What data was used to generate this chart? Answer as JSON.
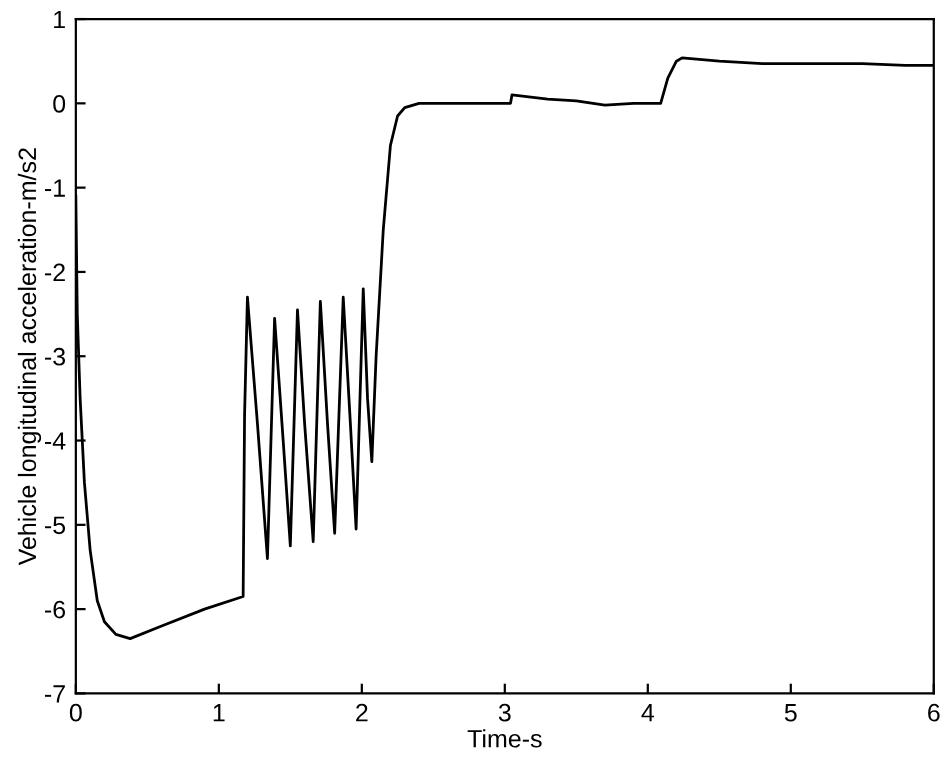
{
  "chart_data": {
    "type": "line",
    "xlabel": "Time-s",
    "ylabel": "Vehicle longitudinal acceleration-m/s2",
    "xlim": [
      0,
      6
    ],
    "ylim": [
      -7,
      1
    ],
    "xticks": [
      0,
      1,
      2,
      3,
      4,
      5,
      6
    ],
    "yticks": [
      -7,
      -6,
      -5,
      -4,
      -3,
      -2,
      -1,
      0,
      1
    ],
    "grid": false,
    "legend": false,
    "line_style": "solid",
    "marker": "none",
    "series": [
      {
        "color": "#000000",
        "x": [
          0.0,
          0.01,
          0.03,
          0.06,
          0.1,
          0.15,
          0.2,
          0.28,
          0.38,
          0.6,
          0.9,
          1.17,
          1.18,
          1.2,
          1.27,
          1.34,
          1.39,
          1.45,
          1.5,
          1.55,
          1.6,
          1.66,
          1.71,
          1.76,
          1.81,
          1.87,
          1.92,
          1.96,
          2.01,
          2.04,
          2.07,
          2.1,
          2.15,
          2.2,
          2.25,
          2.3,
          2.4,
          2.6,
          3.0,
          3.04,
          3.05,
          3.3,
          3.5,
          3.7,
          3.9,
          4.09,
          4.14,
          4.2,
          4.24,
          4.5,
          4.8,
          5.5,
          5.8,
          6.0
        ],
        "values": [
          -1.1,
          -2.5,
          -3.5,
          -4.5,
          -5.3,
          -5.9,
          -6.15,
          -6.3,
          -6.35,
          -6.2,
          -6.0,
          -5.85,
          -3.7,
          -2.3,
          -3.8,
          -5.4,
          -2.55,
          -4.0,
          -5.25,
          -2.45,
          -3.8,
          -5.2,
          -2.35,
          -3.8,
          -5.1,
          -2.3,
          -3.8,
          -5.05,
          -2.2,
          -3.5,
          -4.25,
          -3.0,
          -1.5,
          -0.5,
          -0.15,
          -0.05,
          0.0,
          0.0,
          0.0,
          0.0,
          0.1,
          0.05,
          0.03,
          -0.02,
          0.0,
          0.0,
          0.3,
          0.5,
          0.54,
          0.5,
          0.47,
          0.47,
          0.45,
          0.45
        ]
      }
    ]
  }
}
